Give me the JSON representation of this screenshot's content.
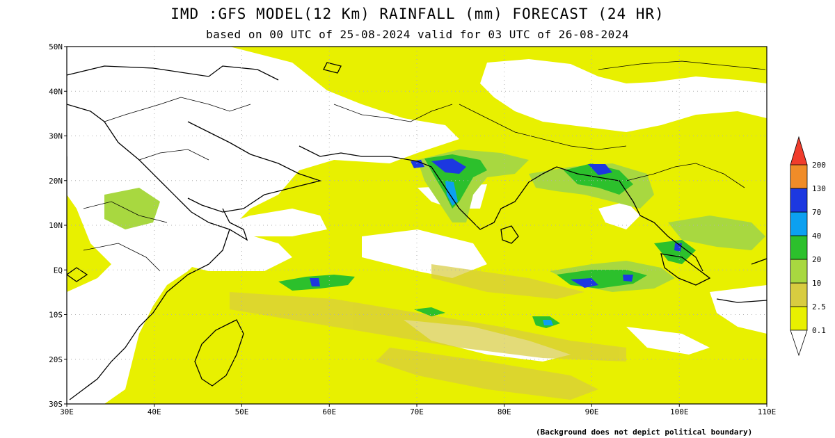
{
  "title": "IMD :GFS MODEL(12 Km) RAINFALL (mm) FORECAST (24 HR)",
  "subtitle": "based on 00 UTC of 25-08-2024 valid for 03 UTC of 26-08-2024",
  "footnote": "(Background does not depict political boundary)",
  "map": {
    "lon_range": [
      30,
      110
    ],
    "lat_range": [
      -30,
      50
    ],
    "lon_ticks": [
      {
        "value": 30,
        "label": "30E"
      },
      {
        "value": 40,
        "label": "40E"
      },
      {
        "value": 50,
        "label": "50E"
      },
      {
        "value": 60,
        "label": "60E"
      },
      {
        "value": 70,
        "label": "70E"
      },
      {
        "value": 80,
        "label": "80E"
      },
      {
        "value": 90,
        "label": "90E"
      },
      {
        "value": 100,
        "label": "100E"
      },
      {
        "value": 110,
        "label": "110E"
      }
    ],
    "lat_ticks": [
      {
        "value": 50,
        "label": "50N"
      },
      {
        "value": 40,
        "label": "40N"
      },
      {
        "value": 30,
        "label": "30N"
      },
      {
        "value": 20,
        "label": "20N"
      },
      {
        "value": 10,
        "label": "10N"
      },
      {
        "value": 0,
        "label": "EQ"
      },
      {
        "value": -10,
        "label": "10S"
      },
      {
        "value": -20,
        "label": "20S"
      },
      {
        "value": -30,
        "label": "30S"
      }
    ],
    "grid": true
  },
  "legend": {
    "levels": [
      {
        "label": "0.1",
        "color": "#e8f000"
      },
      {
        "label": "2.5",
        "color": "#d8cc40"
      },
      {
        "label": "10",
        "color": "#a8d840"
      },
      {
        "label": "20",
        "color": "#2cc02c"
      },
      {
        "label": "40",
        "color": "#0ca0f0"
      },
      {
        "label": "70",
        "color": "#1c38e0"
      },
      {
        "label": "130",
        "color": "#f08c28"
      },
      {
        "label": "200",
        "color": "#f03c2c"
      }
    ],
    "top_color": "#f03c2c"
  },
  "colors": {
    "light_rain": "#e8f000",
    "moderate": "#d8cc40",
    "green": "#a8d840",
    "heavy": "#2cc02c",
    "very_heavy": "#1c38e0",
    "land_dry": "#ffffff"
  }
}
